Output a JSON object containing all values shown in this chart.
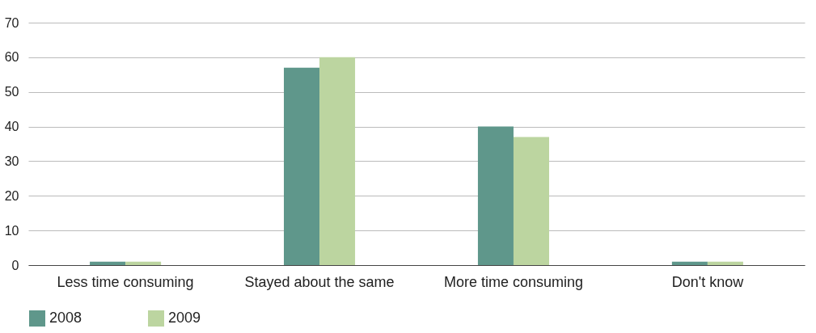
{
  "chart_data": {
    "type": "bar",
    "categories": [
      "Less time consuming",
      "Stayed about the same",
      "More time consuming",
      "Don't know"
    ],
    "series": [
      {
        "name": "2008",
        "color": "#5f978b",
        "values": [
          1,
          57,
          40,
          1
        ]
      },
      {
        "name": "2009",
        "color": "#bcd5a0",
        "values": [
          1,
          60,
          37,
          1
        ]
      }
    ],
    "ylim": [
      0,
      70
    ],
    "yticks": [
      0,
      10,
      20,
      30,
      40,
      50,
      60,
      70
    ],
    "grid": "y",
    "legend": "bottom"
  }
}
